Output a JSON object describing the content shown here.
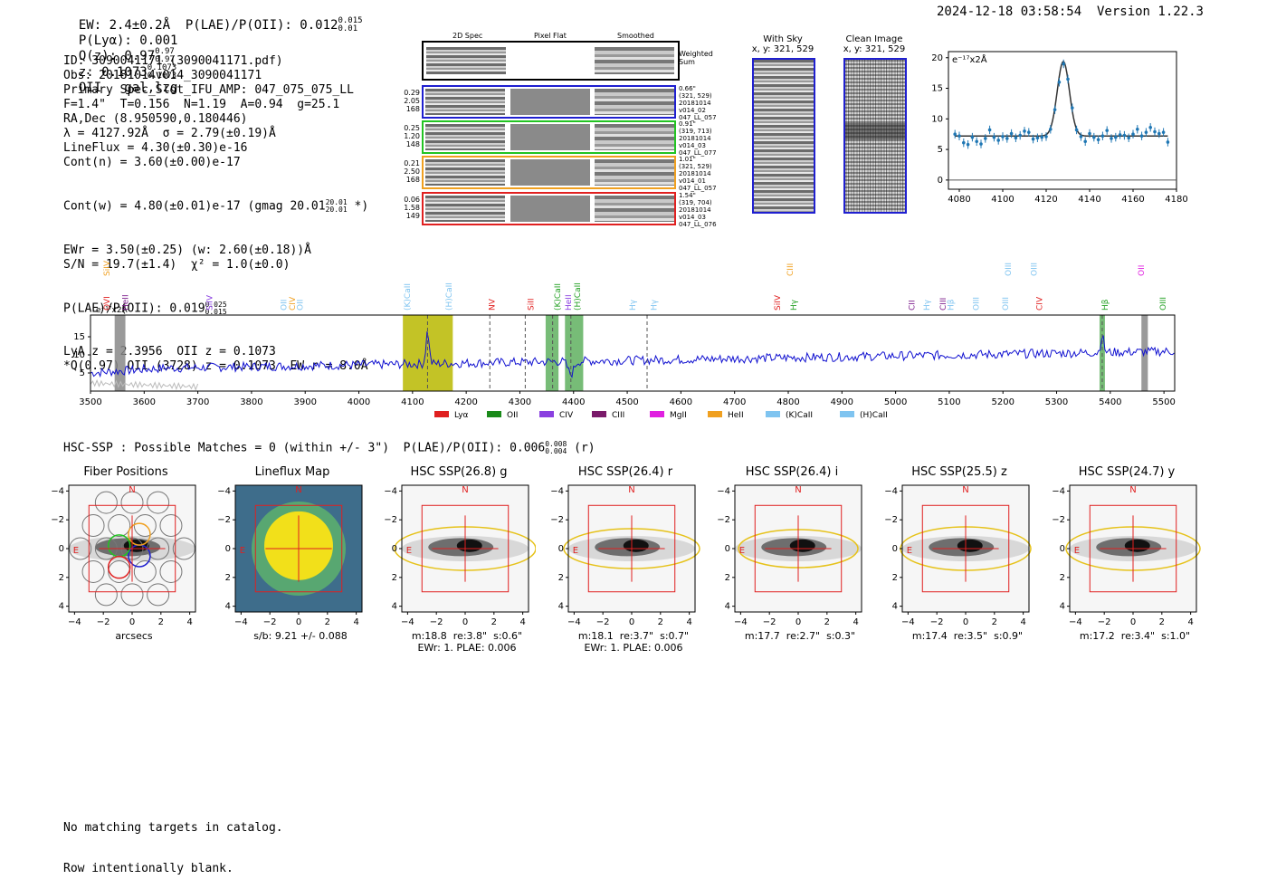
{
  "header": {
    "line": "EW: 2.4±0.2Å  P(LAE)/P(OII): 0.012",
    "plae_sup": "0.015",
    "plae_sub": "0.01",
    "plya": "P(Lyα): 0.001",
    "qz": "Q(z): 0.97",
    "qz_sup": "0.97",
    "qz_sub": "0.97",
    "z": "z: 0.1073",
    "z_sup": "0.1073",
    "z_sub": "0.1073",
    "z_type": "OII   gal,lzg",
    "timestamp": "2024-12-18 03:58:54  Version 1.22.3"
  },
  "info": {
    "lines": [
      "ID: 3090041171 (3090041171.pdf)",
      "Obs: 20181014v014_3090041171",
      "Primary Spec_Slot_IFU_AMP: 047_075_075_LL",
      "F=1.4\"  T=0.156  N=1.19  A=0.94  g=25.1",
      "RA,Dec (8.950590,0.180446)",
      "λ = 4127.92Å  σ = 2.79(±0.19)Å",
      "LineFlux = 4.30(±0.30)e-16",
      "Cont(n) = 3.60(±0.00)e-17"
    ],
    "contw": "Cont(w) = 4.80(±0.01)e-17 (gmag 20.01",
    "contw_sup": "20.01",
    "contw_sub": "20.01",
    "contw_end": " *)",
    "lines2": [
      "EWr = 3.50(±0.25) (w: 2.60(±0.18))Å",
      "S/N = 19.7(±1.4)  χ² = 1.0(±0.0)"
    ],
    "plae2": "P(LAE)/P(OII): 0.019",
    "plae2_sup": "0.025",
    "plae2_sub": "0.015",
    "lines3": [
      "LyA z = 2.3956  OII z = 0.1073",
      "*Q(0.97) OII (3728) z = 0.1073  EW r = 8.0Å"
    ]
  },
  "cutouts": {
    "col_2d": "2D Spec",
    "col_flat": "Pixel Flat",
    "col_smooth": "Smoothed",
    "weighted": "Weighted\nSum",
    "rows": [
      {
        "vals": "0.29\n2.05\n168",
        "meta": "0.66\"\n(321, 529)\n20181014\nv014_02\n047_LL_057",
        "color": "#1f1fd0"
      },
      {
        "vals": "0.25\n1.20\n148",
        "meta": "0.91\"\n(319, 713)\n20181014\nv014_03\n047_LL_077",
        "color": "#22c422"
      },
      {
        "vals": "0.21\n2.50\n168",
        "meta": "1.01\"\n(321, 529)\n20181014\nv014_01\n047_LL_057",
        "color": "#f0a020"
      },
      {
        "vals": "0.06\n1.58\n149",
        "meta": "1.54\"\n(319, 704)\n20181014\nv014_03\n047_LL_076",
        "color": "#e02020"
      }
    ],
    "with_sky": "With Sky",
    "with_sky_xy": "x, y: 321, 529",
    "clean": "Clean Image",
    "clean_xy": "x, y: 321, 529"
  },
  "zoom_fit": {
    "units": "e⁻¹⁷x2Å",
    "xlim": [
      4075,
      4180
    ],
    "ylim": [
      -1.5,
      21
    ],
    "xticks": [
      "4080",
      "4100",
      "4120",
      "4140",
      "4160",
      "4180"
    ],
    "yticks": [
      "0",
      "5",
      "10",
      "15",
      "20"
    ],
    "data_x": [
      4078,
      4080,
      4082,
      4084,
      4086,
      4088,
      4090,
      4092,
      4094,
      4096,
      4098,
      4100,
      4102,
      4104,
      4106,
      4108,
      4110,
      4112,
      4114,
      4116,
      4118,
      4120,
      4122,
      4124,
      4126,
      4128,
      4130,
      4132,
      4134,
      4136,
      4138,
      4140,
      4142,
      4144,
      4146,
      4148,
      4150,
      4152,
      4154,
      4156,
      4158,
      4160,
      4162,
      4164,
      4166,
      4168,
      4170,
      4172,
      4174,
      4176
    ],
    "data_y": [
      7.5,
      7.2,
      6.1,
      5.8,
      7.0,
      6.3,
      5.9,
      6.8,
      8.2,
      7.0,
      6.5,
      7.1,
      6.8,
      7.6,
      6.9,
      7.3,
      8.0,
      7.8,
      6.7,
      6.9,
      7.0,
      7.1,
      8.3,
      11.5,
      16.0,
      19.0,
      16.5,
      11.8,
      8.2,
      7.1,
      6.3,
      7.6,
      7.0,
      6.6,
      7.2,
      8.1,
      6.8,
      7.0,
      7.4,
      7.3,
      6.9,
      7.5,
      8.3,
      7.2,
      7.8,
      8.6,
      7.9,
      7.6,
      7.8,
      6.2
    ],
    "continuum": 7.2,
    "peak": 19.4,
    "center": 4127.9,
    "sigma": 2.79
  },
  "spectrum": {
    "units": "e⁻¹⁷x2Å",
    "xlim": [
      3500,
      5520
    ],
    "ylim": [
      0,
      21
    ],
    "xticks": [
      "3500",
      "3600",
      "3700",
      "3800",
      "3900",
      "4000",
      "4100",
      "4200",
      "4300",
      "4400",
      "4500",
      "4600",
      "4700",
      "4800",
      "4900",
      "5000",
      "5100",
      "5200",
      "5300",
      "5400",
      "5500"
    ],
    "yticks": [
      "5",
      "10",
      "15"
    ],
    "top_labels": [
      {
        "text": "SiIV",
        "x": 3530,
        "color": "#f0a020",
        "row": 0
      },
      {
        "text": "CIII",
        "x": 4803,
        "color": "#f0a020",
        "row": 0
      },
      {
        "text": "OIII",
        "x": 5210,
        "color": "#7fc4f0",
        "row": 0
      },
      {
        "text": "OIII",
        "x": 5258,
        "color": "#7fc4f0",
        "row": 0
      },
      {
        "text": "OII",
        "x": 5458,
        "color": "#e020e0",
        "row": 0
      }
    ],
    "mid_labels": [
      {
        "text": "OVI",
        "x": 3530,
        "color": "#e02020"
      },
      {
        "text": "HeII",
        "x": 3565,
        "color": "#7a1a8a"
      },
      {
        "text": "SiIV",
        "x": 3722,
        "color": "#8a40e0"
      },
      {
        "text": "OII",
        "x": 3860,
        "color": "#7fc4f0"
      },
      {
        "text": "CIV",
        "x": 3876,
        "color": "#f0a020"
      },
      {
        "text": "OII",
        "x": 3890,
        "color": "#7fc4f0"
      },
      {
        "text": "(K)CaII",
        "x": 4090,
        "color": "#7fc4f0"
      },
      {
        "text": "(H)CaII",
        "x": 4168,
        "color": "#7fc4f0"
      },
      {
        "text": "NV",
        "x": 4248,
        "color": "#e02020"
      },
      {
        "text": "SiII",
        "x": 4320,
        "color": "#e02020"
      },
      {
        "text": "(K)CaII",
        "x": 4370,
        "color": "#22a022"
      },
      {
        "text": "HeII",
        "x": 4390,
        "color": "#8a40e0"
      },
      {
        "text": "(H)CaII",
        "x": 4407,
        "color": "#22a022"
      },
      {
        "text": "Hγ",
        "x": 4510,
        "color": "#7fc4f0"
      },
      {
        "text": "Hγ",
        "x": 4550,
        "color": "#7fc4f0"
      },
      {
        "text": "SiIV",
        "x": 4780,
        "color": "#e02020"
      },
      {
        "text": "Hγ",
        "x": 4810,
        "color": "#22a022"
      },
      {
        "text": "CII",
        "x": 5030,
        "color": "#7a1a8a"
      },
      {
        "text": "Hγ",
        "x": 5058,
        "color": "#7fc4f0"
      },
      {
        "text": "CIII",
        "x": 5088,
        "color": "#7a1a8a"
      },
      {
        "text": "Hβ",
        "x": 5103,
        "color": "#7fc4f0"
      },
      {
        "text": "OIII",
        "x": 5150,
        "color": "#7fc4f0"
      },
      {
        "text": "OIII",
        "x": 5205,
        "color": "#7fc4f0"
      },
      {
        "text": "CIV",
        "x": 5268,
        "color": "#e02020"
      },
      {
        "text": "Hβ",
        "x": 5390,
        "color": "#22a022"
      },
      {
        "text": "OIII",
        "x": 5498,
        "color": "#22a022"
      }
    ],
    "bands": [
      {
        "x0": 3545,
        "x1": 3565,
        "color": "#888888"
      },
      {
        "x0": 4082,
        "x1": 4175,
        "color": "#b8b800"
      },
      {
        "x0": 4348,
        "x1": 4372,
        "color": "#5fb05f"
      },
      {
        "x0": 4384,
        "x1": 4418,
        "color": "#5fb05f"
      },
      {
        "x0": 5380,
        "x1": 5390,
        "color": "#5fb05f"
      },
      {
        "x0": 5458,
        "x1": 5470,
        "color": "#888888"
      }
    ],
    "dashed": [
      4128,
      4244,
      4310,
      4361,
      4395,
      4537,
      5385
    ],
    "legend": [
      {
        "label": "Lyα",
        "color": "#e02020"
      },
      {
        "label": "OII",
        "color": "#1a8a1a"
      },
      {
        "label": "CIV",
        "color": "#8a40e0"
      },
      {
        "label": "CIII",
        "color": "#7a1a6a"
      },
      {
        "label": "MgII",
        "color": "#e020e0"
      },
      {
        "label": "HeII",
        "color": "#f0a020"
      },
      {
        "label": "(K)CaII",
        "color": "#7fc4f0"
      },
      {
        "label": "(H)CaII",
        "color": "#7fc4f0"
      }
    ]
  },
  "hsc": {
    "headline": "HSC-SSP : Possible Matches = 0 (within +/- 3\")  P(LAE)/P(OII): 0.006",
    "h_sup": "0.008",
    "h_sub": "0.004",
    "h_end": " (r)",
    "axis_ticks": [
      "−4",
      "−2",
      "0",
      "2",
      "4"
    ],
    "panels": [
      {
        "title": "Fiber Positions",
        "cap1": "arcsecs",
        "cap2": ""
      },
      {
        "title": "Lineflux Map",
        "cap1": "s/b: 9.21 +/- 0.088",
        "cap2": ""
      },
      {
        "title": "HSC SSP(26.8) g",
        "cap1": "m:18.8  re:3.8\"  s:0.6\"",
        "cap2": "EWr: 1. PLAE: 0.006"
      },
      {
        "title": "HSC SSP(26.4) r",
        "cap1": "m:18.1  re:3.7\"  s:0.7\"",
        "cap2": "EWr: 1. PLAE: 0.006"
      },
      {
        "title": "HSC SSP(26.4) i",
        "cap1": "m:17.7  re:2.7\"  s:0.3\"",
        "cap2": ""
      },
      {
        "title": "HSC SSP(25.5) z",
        "cap1": "m:17.4  re:3.5\"  s:0.9\"",
        "cap2": ""
      },
      {
        "title": "HSC SSP(24.7) y",
        "cap1": "m:17.2  re:3.4\"  s:1.0\"",
        "cap2": ""
      }
    ],
    "compass_n": "N",
    "compass_e": "E"
  },
  "footer": {
    "line1": "No matching targets in catalog.",
    "line2": "Row intentionally blank."
  }
}
